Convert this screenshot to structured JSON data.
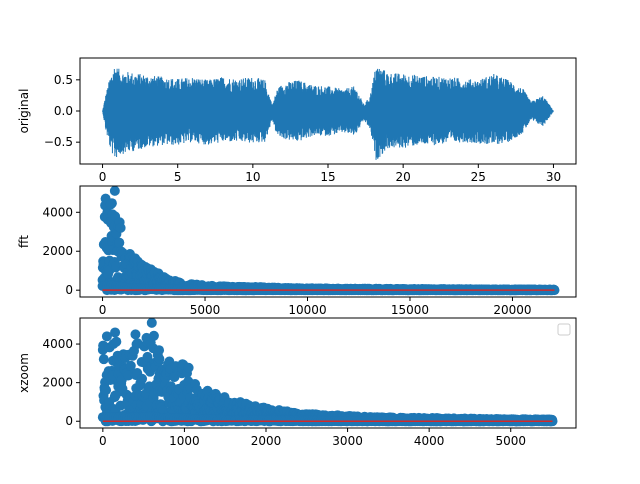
{
  "colors": {
    "series": "#1f77b4",
    "baseline": "#d62728",
    "axis": "#000000"
  },
  "chart_data": [
    {
      "type": "line",
      "ylabel": "original",
      "xlim": [
        -1.5,
        31.5
      ],
      "ylim": [
        -0.85,
        0.85
      ],
      "xticks": [
        0,
        5,
        10,
        15,
        20,
        25,
        30
      ],
      "xtick_labels": [
        "0",
        "5",
        "10",
        "15",
        "20",
        "25",
        "30"
      ],
      "yticks": [
        0.5,
        0.0,
        -0.5
      ],
      "ytick_labels": [
        "0.5",
        "0.0",
        "−0.5"
      ],
      "envelope": {
        "x": [
          0,
          0.2,
          0.5,
          0.8,
          1.2,
          2,
          3,
          4,
          5,
          6,
          7,
          8,
          9,
          10,
          10.8,
          11.3,
          11.6,
          12,
          13,
          14,
          15,
          16,
          16.8,
          17.4,
          17.8,
          18.2,
          19,
          20,
          21,
          22,
          23,
          24,
          25,
          26,
          27,
          28,
          28.5,
          29.3,
          29.8,
          30
        ],
        "upper": [
          0,
          0.25,
          0.55,
          0.75,
          0.65,
          0.62,
          0.58,
          0.55,
          0.52,
          0.55,
          0.5,
          0.55,
          0.52,
          0.55,
          0.5,
          0.1,
          0.35,
          0.45,
          0.5,
          0.42,
          0.4,
          0.35,
          0.4,
          0.1,
          0.25,
          0.75,
          0.62,
          0.6,
          0.58,
          0.55,
          0.55,
          0.52,
          0.5,
          0.6,
          0.5,
          0.35,
          0.15,
          0.25,
          0.08,
          0
        ],
        "lower": [
          0,
          -0.3,
          -0.6,
          -0.78,
          -0.7,
          -0.65,
          -0.58,
          -0.55,
          -0.55,
          -0.5,
          -0.55,
          -0.5,
          -0.5,
          -0.52,
          -0.5,
          -0.15,
          -0.4,
          -0.45,
          -0.5,
          -0.4,
          -0.4,
          -0.35,
          -0.4,
          -0.15,
          -0.3,
          -0.8,
          -0.6,
          -0.6,
          -0.55,
          -0.55,
          -0.52,
          -0.5,
          -0.52,
          -0.55,
          -0.5,
          -0.35,
          -0.15,
          -0.25,
          -0.08,
          0
        ]
      }
    },
    {
      "type": "scatter",
      "ylabel": "fft",
      "xlim": [
        -1100,
        23100
      ],
      "ylim": [
        -350,
        5350
      ],
      "xticks": [
        0,
        5000,
        10000,
        15000,
        20000
      ],
      "xtick_labels": [
        "0",
        "5000",
        "10000",
        "15000",
        "20000"
      ],
      "yticks": [
        0,
        2000,
        4000
      ],
      "ytick_labels": [
        "0",
        "2000",
        "4000"
      ],
      "envelope": {
        "x": [
          0,
          150,
          300,
          500,
          700,
          900,
          1100,
          1300,
          1500,
          2000,
          2500,
          3000,
          3500,
          4000,
          5000,
          6000,
          7000,
          8000,
          9000,
          10000,
          12000,
          15000,
          18000,
          20000,
          22050
        ],
        "upper": [
          4300,
          4700,
          4000,
          5100,
          3800,
          3400,
          2500,
          2000,
          1800,
          1300,
          1000,
          700,
          500,
          350,
          250,
          200,
          180,
          150,
          120,
          100,
          80,
          60,
          50,
          40,
          30
        ]
      },
      "peaks": [
        {
          "x": 600,
          "y": 5100
        },
        {
          "x": 150,
          "y": 4700
        },
        {
          "x": 400,
          "y": 4400
        }
      ]
    },
    {
      "type": "scatter",
      "ylabel": "xzoom",
      "xlim": [
        -280,
        5800
      ],
      "ylim": [
        -350,
        5350
      ],
      "xticks": [
        0,
        1000,
        2000,
        3000,
        4000,
        5000
      ],
      "xtick_labels": [
        "0",
        "1000",
        "2000",
        "3000",
        "4000",
        "5000"
      ],
      "yticks": [
        0,
        2000,
        4000
      ],
      "ytick_labels": [
        "0",
        "2000",
        "4000"
      ],
      "legend": "top-right",
      "envelope": {
        "x": [
          0,
          50,
          100,
          150,
          200,
          250,
          300,
          350,
          400,
          450,
          500,
          550,
          600,
          650,
          700,
          750,
          800,
          850,
          900,
          950,
          1000,
          1100,
          1200,
          1300,
          1400,
          1500,
          1600,
          1700,
          1800,
          1900,
          2000,
          2100,
          2200,
          2300,
          2400,
          2500,
          2600,
          2800,
          3000,
          3200,
          3500,
          4000,
          4500,
          5000,
          5512
        ],
        "upper": [
          4200,
          4400,
          3800,
          4600,
          3700,
          4000,
          3300,
          3900,
          4500,
          3600,
          4200,
          4400,
          5100,
          4700,
          3400,
          3100,
          3600,
          2800,
          3000,
          2600,
          3400,
          2200,
          1900,
          1700,
          1500,
          1300,
          1100,
          1000,
          900,
          800,
          700,
          620,
          550,
          500,
          450,
          420,
          380,
          320,
          280,
          240,
          200,
          170,
          140,
          110,
          90
        ]
      },
      "peaks": [
        {
          "x": 600,
          "y": 5100
        },
        {
          "x": 150,
          "y": 4600
        },
        {
          "x": 400,
          "y": 4500
        },
        {
          "x": 50,
          "y": 4400
        }
      ]
    }
  ]
}
